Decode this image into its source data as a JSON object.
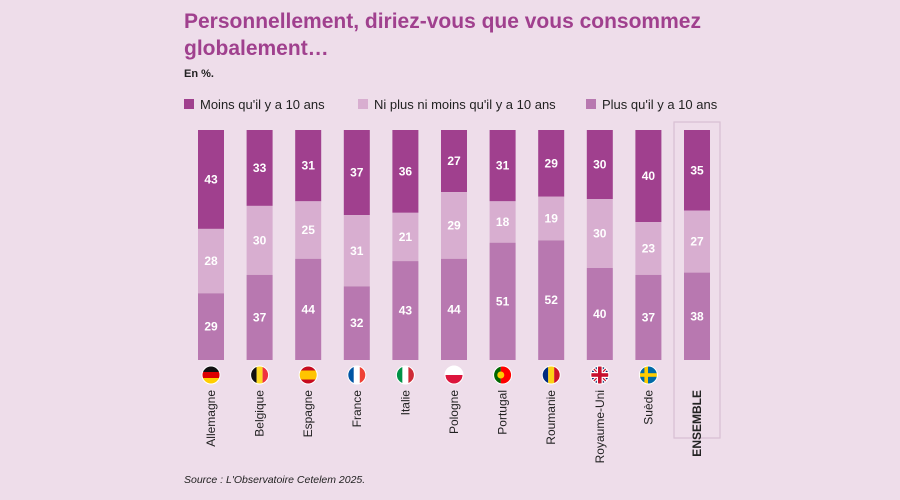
{
  "header": {
    "title": "Personnellement, diriez-vous que vous consommez globalement…",
    "unit": "En %."
  },
  "footer": {
    "source": "Source : L'Observatoire Cetelem 2025."
  },
  "colors": {
    "moins": "#a0408e",
    "ni": "#d8aed0",
    "plus": "#b878b0",
    "background": "#eeddea"
  },
  "chart_data": {
    "type": "bar",
    "stacked": true,
    "unit": "%",
    "title": "Personnellement, diriez-vous que vous consommez globalement…",
    "categories": [
      "Allemagne",
      "Belgique",
      "Espagne",
      "France",
      "Italie",
      "Pologne",
      "Portugal",
      "Roumanie",
      "Royaume-Uni",
      "Suède",
      "ENSEMBLE"
    ],
    "flags": [
      "de",
      "be",
      "es",
      "fr",
      "it",
      "pl",
      "pt",
      "ro",
      "gb",
      "se",
      ""
    ],
    "series": [
      {
        "name": "Moins qu'il y a 10 ans",
        "color_key": "moins",
        "values": [
          43,
          33,
          31,
          37,
          36,
          27,
          31,
          29,
          30,
          40,
          35
        ]
      },
      {
        "name": "Ni plus ni moins qu'il y a 10 ans",
        "color_key": "ni",
        "values": [
          28,
          30,
          25,
          31,
          21,
          29,
          18,
          19,
          30,
          23,
          27
        ]
      },
      {
        "name": "Plus qu'il y a 10 ans",
        "color_key": "plus",
        "values": [
          29,
          37,
          44,
          32,
          43,
          44,
          51,
          52,
          40,
          37,
          38
        ]
      }
    ],
    "ylim": [
      0,
      100
    ],
    "legend_position": "top",
    "highlighted_category": "ENSEMBLE"
  }
}
